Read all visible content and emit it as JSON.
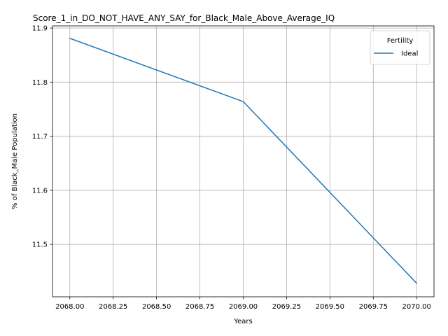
{
  "chart_data": {
    "type": "line",
    "title": "Score_1_in_DO_NOT_HAVE_ANY_SAY_for_Black_Male_Above_Average_IQ",
    "xlabel": "Years",
    "ylabel": "% of Black_Male Population",
    "xlim": [
      2067.9,
      2070.1
    ],
    "ylim": [
      11.403,
      11.904
    ],
    "x_ticks": [
      "2068.00",
      "2068.25",
      "2068.50",
      "2068.75",
      "2069.00",
      "2069.25",
      "2069.50",
      "2069.75",
      "2070.00"
    ],
    "y_ticks": [
      "11.5",
      "11.6",
      "11.7",
      "11.8",
      "11.9"
    ],
    "grid": true,
    "legend": {
      "title": "Fertility",
      "position": "top-right"
    },
    "series": [
      {
        "name": "Ideal",
        "color": "#1f77b4",
        "x": [
          2068,
          2069,
          2070
        ],
        "y": [
          11.881,
          11.764,
          11.428
        ]
      }
    ]
  }
}
